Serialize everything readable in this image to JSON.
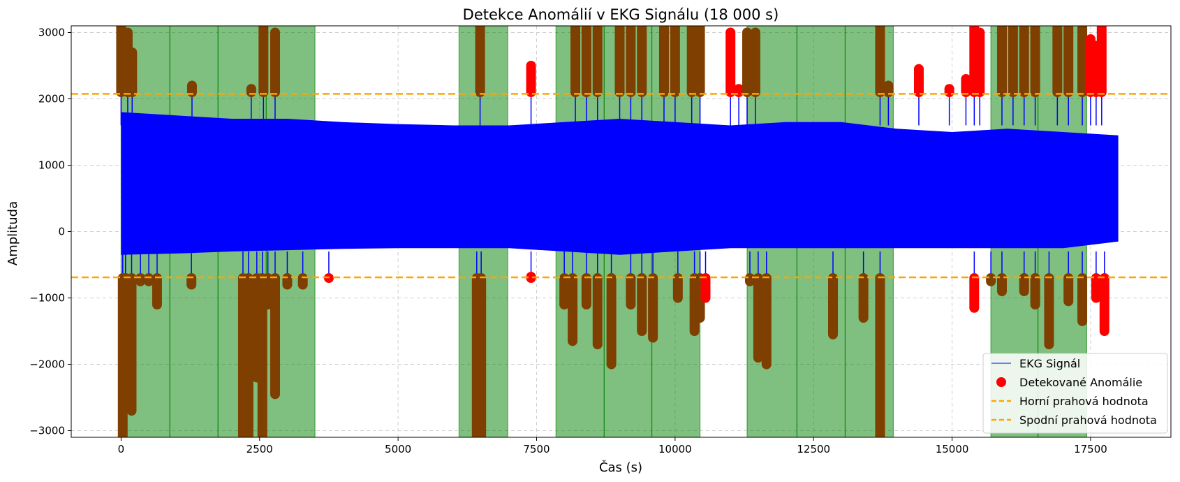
{
  "chart_data": {
    "type": "line",
    "title": "Detekce Anomálií v EKG Signálu (18 000 s)",
    "xlabel": "Čas (s)",
    "ylabel": "Amplituda",
    "xlim": [
      -900,
      18950
    ],
    "ylim": [
      -3100,
      3100
    ],
    "xticks": [
      0,
      2500,
      5000,
      7500,
      10000,
      12500,
      15000,
      17500
    ],
    "yticks": [
      -3000,
      -2000,
      -1000,
      0,
      1000,
      2000,
      3000
    ],
    "xtick_labels": [
      "0",
      "2500",
      "5000",
      "7500",
      "10000",
      "12500",
      "15000",
      "17500"
    ],
    "ytick_labels": [
      "−3000",
      "−2000",
      "−1000",
      "0",
      "1000",
      "2000",
      "3000"
    ],
    "grid": true,
    "legend_position": "lower-right",
    "thresholds": {
      "upper": {
        "name": "Horní prahová hodnota",
        "value": 2075,
        "color": "#ffa500"
      },
      "lower": {
        "name": "Spodní prahová hodnota",
        "value": -690,
        "color": "#ffa500"
      }
    },
    "signal": {
      "name": "EKG Signál",
      "color": "#0000ff",
      "x_range": [
        0,
        18000
      ],
      "envelope": [
        {
          "x": 0,
          "min": -350,
          "max": 1800
        },
        {
          "x": 1000,
          "min": -330,
          "max": 1750
        },
        {
          "x": 2000,
          "min": -300,
          "max": 1700
        },
        {
          "x": 3000,
          "min": -280,
          "max": 1700
        },
        {
          "x": 4000,
          "min": -260,
          "max": 1650
        },
        {
          "x": 5000,
          "min": -250,
          "max": 1620
        },
        {
          "x": 6000,
          "min": -250,
          "max": 1600
        },
        {
          "x": 7000,
          "min": -250,
          "max": 1600
        },
        {
          "x": 8000,
          "min": -300,
          "max": 1650
        },
        {
          "x": 9000,
          "min": -350,
          "max": 1700
        },
        {
          "x": 10000,
          "min": -300,
          "max": 1650
        },
        {
          "x": 11000,
          "min": -250,
          "max": 1600
        },
        {
          "x": 12000,
          "min": -250,
          "max": 1650
        },
        {
          "x": 13000,
          "min": -250,
          "max": 1650
        },
        {
          "x": 14000,
          "min": -250,
          "max": 1550
        },
        {
          "x": 15000,
          "min": -250,
          "max": 1500
        },
        {
          "x": 16000,
          "min": -250,
          "max": 1550
        },
        {
          "x": 17000,
          "min": -250,
          "max": 1500
        },
        {
          "x": 18000,
          "min": -150,
          "max": 1450
        }
      ]
    },
    "anomalies": {
      "name": "Detekované Anomálie",
      "color": "#ff0000",
      "clusters": [
        {
          "x": 0,
          "ymin": 2100,
          "ymax": 3100
        },
        {
          "x": 30,
          "ymin": -3100,
          "ymax": -700
        },
        {
          "x": 80,
          "ymin": -2000,
          "ymax": -700
        },
        {
          "x": 120,
          "ymin": 2100,
          "ymax": 3000
        },
        {
          "x": 200,
          "ymin": 2100,
          "ymax": 2700
        },
        {
          "x": 190,
          "ymin": -2700,
          "ymax": -700
        },
        {
          "x": 350,
          "ymin": -750,
          "ymax": -700
        },
        {
          "x": 500,
          "ymin": -750,
          "ymax": -700
        },
        {
          "x": 650,
          "ymin": -1100,
          "ymax": -700
        },
        {
          "x": 1280,
          "ymin": 2100,
          "ymax": 2200
        },
        {
          "x": 1270,
          "ymin": -800,
          "ymax": -700
        },
        {
          "x": 2200,
          "ymin": -3100,
          "ymax": -700
        },
        {
          "x": 2300,
          "ymin": -3100,
          "ymax": -700
        },
        {
          "x": 2350,
          "ymin": 2100,
          "ymax": 2150
        },
        {
          "x": 2450,
          "ymin": -2200,
          "ymax": -700
        },
        {
          "x": 2550,
          "ymin": -3100,
          "ymax": -700
        },
        {
          "x": 2570,
          "ymin": 2100,
          "ymax": 3100
        },
        {
          "x": 2650,
          "ymin": -1100,
          "ymax": -700
        },
        {
          "x": 2780,
          "ymin": -2450,
          "ymax": -700
        },
        {
          "x": 2780,
          "ymin": 2100,
          "ymax": 3000
        },
        {
          "x": 3000,
          "ymin": -800,
          "ymax": -700
        },
        {
          "x": 3280,
          "ymin": -800,
          "ymax": -700
        },
        {
          "x": 3750,
          "ymin": -700,
          "ymax": -700
        },
        {
          "x": 6420,
          "ymin": -3100,
          "ymax": -700
        },
        {
          "x": 6480,
          "ymin": 2100,
          "ymax": 3100
        },
        {
          "x": 6500,
          "ymin": -3100,
          "ymax": -700
        },
        {
          "x": 7400,
          "ymin": 2100,
          "ymax": 2500
        },
        {
          "x": 7400,
          "ymin": -700,
          "ymax": -680
        },
        {
          "x": 8000,
          "ymin": -1100,
          "ymax": -700
        },
        {
          "x": 8150,
          "ymin": -1650,
          "ymax": -700
        },
        {
          "x": 8200,
          "ymin": 2100,
          "ymax": 3100
        },
        {
          "x": 8400,
          "ymin": 2100,
          "ymax": 3100
        },
        {
          "x": 8400,
          "ymin": -1100,
          "ymax": -700
        },
        {
          "x": 8600,
          "ymin": 2100,
          "ymax": 3100
        },
        {
          "x": 8600,
          "ymin": -1700,
          "ymax": -700
        },
        {
          "x": 8850,
          "ymin": -2000,
          "ymax": -700
        },
        {
          "x": 9000,
          "ymin": 2100,
          "ymax": 3100
        },
        {
          "x": 9200,
          "ymin": 2100,
          "ymax": 3100
        },
        {
          "x": 9200,
          "ymin": -1100,
          "ymax": -700
        },
        {
          "x": 9400,
          "ymin": 2100,
          "ymax": 3100
        },
        {
          "x": 9400,
          "ymin": -1500,
          "ymax": -700
        },
        {
          "x": 9600,
          "ymin": -1600,
          "ymax": -700
        },
        {
          "x": 9800,
          "ymin": 2100,
          "ymax": 3100
        },
        {
          "x": 10000,
          "ymin": 2100,
          "ymax": 3100
        },
        {
          "x": 10050,
          "ymin": -1000,
          "ymax": -700
        },
        {
          "x": 10300,
          "ymin": 2100,
          "ymax": 3100
        },
        {
          "x": 10350,
          "ymin": -1500,
          "ymax": -700
        },
        {
          "x": 10450,
          "ymin": -1300,
          "ymax": -700
        },
        {
          "x": 10450,
          "ymin": 2100,
          "ymax": 3100
        },
        {
          "x": 10550,
          "ymin": -1000,
          "ymax": -700
        },
        {
          "x": 11000,
          "ymin": 2100,
          "ymax": 3000
        },
        {
          "x": 11150,
          "ymin": 2100,
          "ymax": 2150
        },
        {
          "x": 11300,
          "ymin": 2100,
          "ymax": 3000
        },
        {
          "x": 11350,
          "ymin": -750,
          "ymax": -700
        },
        {
          "x": 11450,
          "ymin": 2100,
          "ymax": 3000
        },
        {
          "x": 11500,
          "ymin": -1900,
          "ymax": -700
        },
        {
          "x": 11650,
          "ymin": -2000,
          "ymax": -700
        },
        {
          "x": 12850,
          "ymin": -1550,
          "ymax": -700
        },
        {
          "x": 13400,
          "ymin": -1300,
          "ymax": -700
        },
        {
          "x": 13700,
          "ymin": -3100,
          "ymax": -700
        },
        {
          "x": 13700,
          "ymin": 2100,
          "ymax": 3100
        },
        {
          "x": 13850,
          "ymin": 2100,
          "ymax": 2200
        },
        {
          "x": 14400,
          "ymin": 2100,
          "ymax": 2450
        },
        {
          "x": 14950,
          "ymin": 2100,
          "ymax": 2150
        },
        {
          "x": 15250,
          "ymin": 2100,
          "ymax": 2300
        },
        {
          "x": 15400,
          "ymin": 2100,
          "ymax": 3100
        },
        {
          "x": 15400,
          "ymin": -1150,
          "ymax": -700
        },
        {
          "x": 15500,
          "ymin": 2100,
          "ymax": 3000
        },
        {
          "x": 15700,
          "ymin": -750,
          "ymax": -700
        },
        {
          "x": 15900,
          "ymin": 2100,
          "ymax": 3100
        },
        {
          "x": 15900,
          "ymin": -900,
          "ymax": -700
        },
        {
          "x": 16100,
          "ymin": 2100,
          "ymax": 3100
        },
        {
          "x": 16300,
          "ymin": 2100,
          "ymax": 3100
        },
        {
          "x": 16300,
          "ymin": -900,
          "ymax": -700
        },
        {
          "x": 16500,
          "ymin": -1100,
          "ymax": -700
        },
        {
          "x": 16500,
          "ymin": 2100,
          "ymax": 3100
        },
        {
          "x": 16750,
          "ymin": -1700,
          "ymax": -700
        },
        {
          "x": 16900,
          "ymin": 2100,
          "ymax": 3100
        },
        {
          "x": 17100,
          "ymin": 2100,
          "ymax": 3100
        },
        {
          "x": 17100,
          "ymin": -1050,
          "ymax": -700
        },
        {
          "x": 17350,
          "ymin": -1350,
          "ymax": -700
        },
        {
          "x": 17350,
          "ymin": 2100,
          "ymax": 3100
        },
        {
          "x": 17500,
          "ymin": 2100,
          "ymax": 2900
        },
        {
          "x": 17600,
          "ymin": 2100,
          "ymax": 2800
        },
        {
          "x": 17600,
          "ymin": -1000,
          "ymax": -700
        },
        {
          "x": 17700,
          "ymin": 2100,
          "ymax": 3100
        },
        {
          "x": 17750,
          "ymin": -1500,
          "ymax": -700
        }
      ]
    },
    "anomaly_regions": {
      "color": "#008000",
      "spans": [
        [
          0,
          880
        ],
        [
          880,
          1750
        ],
        [
          1750,
          2620
        ],
        [
          2620,
          3500
        ],
        [
          6100,
          6980
        ],
        [
          7850,
          8720
        ],
        [
          8720,
          9580
        ],
        [
          9580,
          10450
        ],
        [
          11300,
          12200
        ],
        [
          12200,
          13070
        ],
        [
          13070,
          13940
        ],
        [
          15700,
          16550
        ],
        [
          16550,
          17430
        ]
      ]
    },
    "legend": [
      {
        "label": "EKG Signál",
        "kind": "line",
        "color": "#0000ff"
      },
      {
        "label": "Detekované Anomálie",
        "kind": "dot",
        "color": "#ff0000"
      },
      {
        "label": "Horní prahová hodnota",
        "kind": "dash",
        "color": "#ffa500"
      },
      {
        "label": "Spodní prahová hodnota",
        "kind": "dash",
        "color": "#ffa500"
      }
    ]
  }
}
